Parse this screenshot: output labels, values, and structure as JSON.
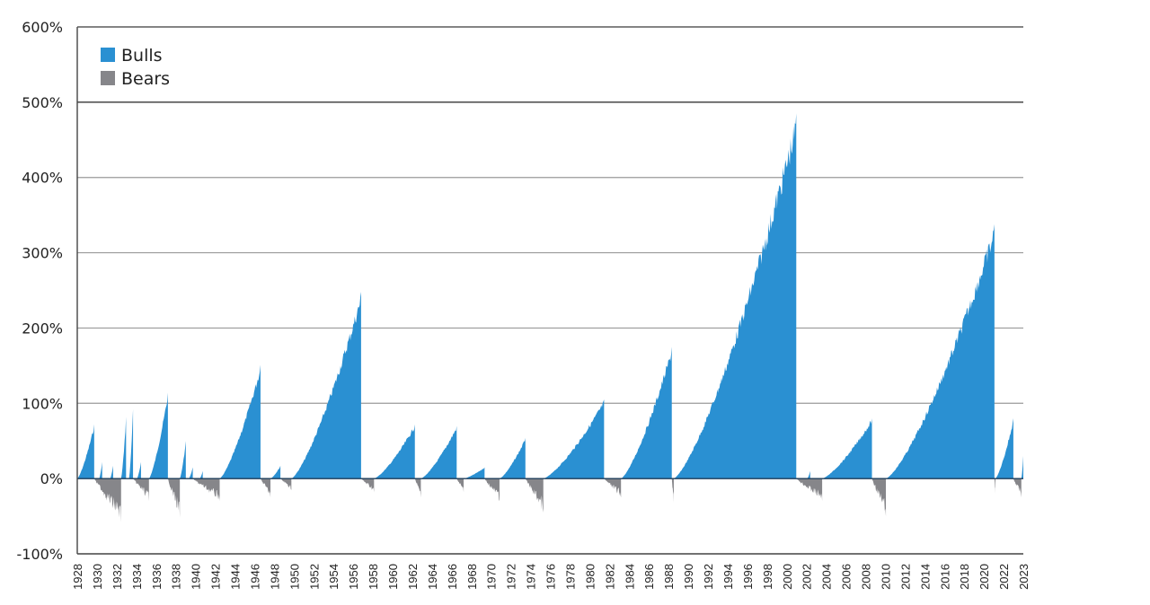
{
  "chart_data": {
    "type": "area",
    "title": "",
    "xlabel": "",
    "ylabel": "",
    "ylim": [
      -100,
      600
    ],
    "xlim": [
      1928,
      2023
    ],
    "grid": true,
    "legend_position": "top-left inside plot",
    "y_ticks": [
      "600%",
      "500%",
      "400%",
      "300%",
      "200%",
      "100%",
      "0%",
      "-100%"
    ],
    "x_ticks": [
      "1928",
      "1930",
      "1932",
      "1934",
      "1936",
      "1938",
      "1940",
      "1942",
      "1944",
      "1946",
      "1948",
      "1950",
      "1952",
      "1954",
      "1956",
      "1958",
      "1960",
      "1962",
      "1964",
      "1966",
      "1968",
      "1970",
      "1972",
      "1974",
      "1976",
      "1978",
      "1980",
      "1982",
      "1984",
      "1986",
      "1988",
      "1990",
      "1992",
      "1994",
      "1996",
      "1998",
      "2000",
      "2002",
      "2004",
      "2006",
      "2008",
      "2010",
      "2012",
      "2014",
      "2016",
      "2018",
      "2020",
      "2022",
      "2023"
    ],
    "legend": [
      {
        "name": "Bulls",
        "color": "#2a90d2"
      },
      {
        "name": "Bears",
        "color": "#86868a"
      }
    ],
    "series": [
      {
        "name": "Bulls",
        "color": "#2a90d2",
        "episodes": [
          {
            "start": 1928.0,
            "end": 1929.7,
            "peak": 72
          },
          {
            "start": 1930.2,
            "end": 1930.5,
            "peak": 22
          },
          {
            "start": 1931.3,
            "end": 1931.6,
            "peak": 17
          },
          {
            "start": 1932.4,
            "end": 1932.9,
            "peak": 82
          },
          {
            "start": 1933.2,
            "end": 1933.6,
            "peak": 92
          },
          {
            "start": 1934.0,
            "end": 1934.4,
            "peak": 22
          },
          {
            "start": 1935.2,
            "end": 1937.1,
            "peak": 114
          },
          {
            "start": 1938.3,
            "end": 1938.9,
            "peak": 50
          },
          {
            "start": 1939.2,
            "end": 1939.6,
            "peak": 15
          },
          {
            "start": 1940.3,
            "end": 1940.6,
            "peak": 10
          },
          {
            "start": 1942.3,
            "end": 1946.4,
            "peak": 151
          },
          {
            "start": 1947.4,
            "end": 1948.4,
            "peak": 17
          },
          {
            "start": 1949.5,
            "end": 1956.5,
            "peak": 248
          },
          {
            "start": 1957.8,
            "end": 1961.9,
            "peak": 72
          },
          {
            "start": 1962.5,
            "end": 1966.1,
            "peak": 70
          },
          {
            "start": 1966.8,
            "end": 1968.9,
            "peak": 15
          },
          {
            "start": 1970.4,
            "end": 1973.0,
            "peak": 54
          },
          {
            "start": 1974.8,
            "end": 1980.9,
            "peak": 105
          },
          {
            "start": 1982.6,
            "end": 1987.7,
            "peak": 175
          },
          {
            "start": 1987.9,
            "end": 2000.2,
            "peak": 485
          },
          {
            "start": 2001.3,
            "end": 2001.6,
            "peak": 10
          },
          {
            "start": 2002.8,
            "end": 2007.8,
            "peak": 80
          },
          {
            "start": 2009.2,
            "end": 2020.1,
            "peak": 338
          },
          {
            "start": 2020.2,
            "end": 2022.0,
            "peak": 80
          },
          {
            "start": 2022.8,
            "end": 2023.0,
            "peak": 30
          }
        ]
      },
      {
        "name": "Bears",
        "color": "#86868a",
        "episodes": [
          {
            "start": 1929.7,
            "end": 1932.4,
            "trough": -58
          },
          {
            "start": 1933.6,
            "end": 1935.2,
            "trough": -30
          },
          {
            "start": 1937.1,
            "end": 1938.3,
            "trough": -52
          },
          {
            "start": 1939.6,
            "end": 1942.3,
            "trough": -30
          },
          {
            "start": 1946.4,
            "end": 1947.4,
            "trough": -25
          },
          {
            "start": 1948.4,
            "end": 1949.5,
            "trough": -15
          },
          {
            "start": 1956.5,
            "end": 1957.8,
            "trough": -18
          },
          {
            "start": 1961.9,
            "end": 1962.5,
            "trough": -25
          },
          {
            "start": 1966.1,
            "end": 1966.8,
            "trough": -18
          },
          {
            "start": 1968.9,
            "end": 1970.4,
            "trough": -30
          },
          {
            "start": 1973.0,
            "end": 1974.8,
            "trough": -45
          },
          {
            "start": 1980.9,
            "end": 1982.6,
            "trough": -25
          },
          {
            "start": 1987.7,
            "end": 1987.9,
            "trough": -32
          },
          {
            "start": 2000.2,
            "end": 2002.8,
            "trough": -30
          },
          {
            "start": 2007.8,
            "end": 2009.2,
            "trough": -50
          },
          {
            "start": 2020.1,
            "end": 2020.2,
            "trough": -20
          },
          {
            "start": 2022.0,
            "end": 2022.8,
            "trough": -25
          }
        ]
      }
    ]
  }
}
